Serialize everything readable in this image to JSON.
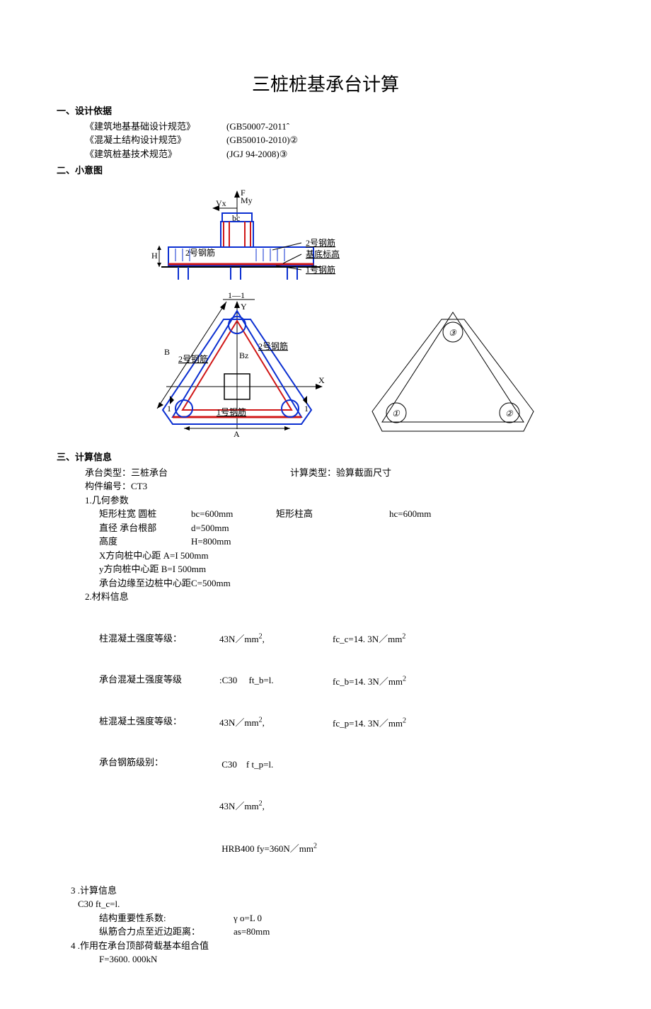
{
  "title": "三桩桩基承台计算",
  "sections": {
    "s1": "一、设计依据",
    "s2": "二、小意图",
    "s3": "三、计算信息"
  },
  "refs": [
    {
      "name": "《建筑地基基础设计规范》",
      "code": "(GB50007-2011ˆ"
    },
    {
      "name": "《混凝土结构设计规范》",
      "code": "(GB50010-2010)②"
    },
    {
      "name": "《建筑桩基技术规范》",
      "code": "(JGJ 94-2008)③"
    }
  ],
  "diagram": {
    "top": {
      "F": "F",
      "My": "My",
      "Vx": "Vx",
      "bc": "bc",
      "H": "H",
      "label1": "1号钢筋",
      "label2a": "2号钢筋",
      "label2b": "2号钢筋",
      "baseLabel": "基底标高",
      "section": "1—1"
    },
    "plan": {
      "Y": "Y",
      "X": "X",
      "Bz": "Bz",
      "A": "A",
      "B": "B",
      "label1": "1号钢筋",
      "label2a": "2号钢筋",
      "label2b": "2号钢筋",
      "one_l": "1",
      "one_r": "1"
    },
    "piles": {
      "p1": "①",
      "p2": "②",
      "p3": "③"
    },
    "colors": {
      "blue": "#0b2fd1",
      "red": "#d01717",
      "black": "#000000"
    }
  },
  "info": {
    "typeLine": {
      "label1": "承台类型：",
      "val1": "三桩承台",
      "label2": "计算类型：",
      "val2": "验算截面尺寸"
    },
    "idLine": {
      "label": "构件编号：",
      "val": "CT3"
    },
    "h1": "1.几何参数",
    "geom": {
      "r1": {
        "c1": "矩形柱宽 圆桩",
        "c2": "bc=600mm",
        "c3": "矩形柱高",
        "c4": "hc=600mm"
      },
      "r2": {
        "c1": "直径 承台根部",
        "c2": "d=500mm"
      },
      "r3": {
        "c1": "高度",
        "c2": "H=800mm"
      },
      "r4": {
        "c1": "X方向桩中心距 A=I 500mm"
      },
      "r5": {
        "c1": "y方向桩中心距 B=I 500mm"
      },
      "r6": {
        "c1": "承台边缘至边桩中心距C=500mm"
      }
    },
    "h2": "2.材料信息",
    "mat": {
      "left": [
        "柱混凝土强度等级：",
        "承台混凝土强度等级",
        "桩混凝土强度等级：",
        "承台钢筋级别："
      ],
      "mid": [
        "43N／mm2,",
        ":C30     ft_b=l.",
        "43N／mm2,",
        " C30    f t_p=l.",
        "43N／mm2,",
        " HRB400 fy=360N／mm2"
      ],
      "right": [
        "fc_c=14. 3N／mm2",
        "fc_b=14. 3N／mm2",
        "fc_p=14. 3N／mm2"
      ]
    },
    "h3a": "3 .计算信息",
    "h3b": " C30    ft_c=l.",
    "calc": {
      "r1": {
        "c1": "结构重要性系数:",
        "c2": "γ o=L 0"
      },
      "r2": {
        "c1": "纵筋合力点至近边距离：",
        "c2": "as=80mm"
      }
    },
    "h4": "4 .作用在承台顶部荷载基本组合值",
    "load": {
      "c1": "F=3600. 000kN"
    }
  }
}
